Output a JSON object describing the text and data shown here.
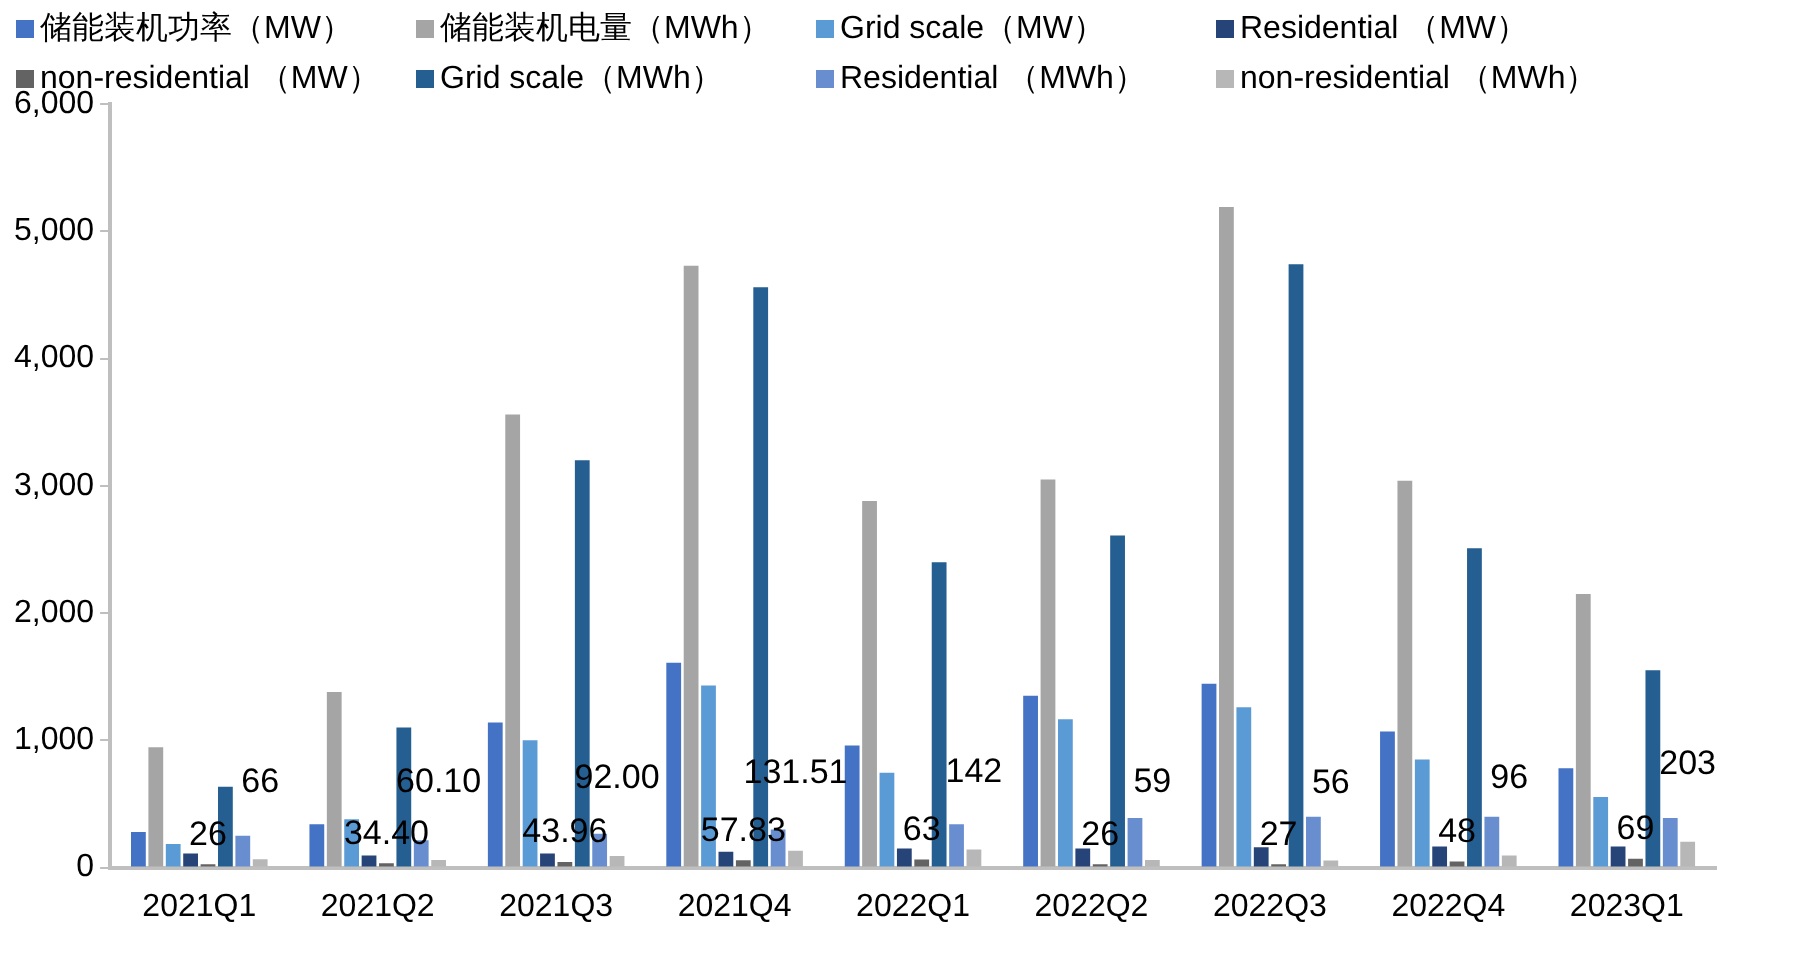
{
  "chart_data": {
    "type": "bar",
    "categories": [
      "2021Q1",
      "2021Q2",
      "2021Q3",
      "2021Q4",
      "2022Q1",
      "2022Q2",
      "2022Q3",
      "2022Q4",
      "2023Q1"
    ],
    "series": [
      {
        "name": "储能装机功率（MW）",
        "color": "#4472c4",
        "values": [
          280,
          340,
          1140,
          1610,
          960,
          1350,
          1445,
          1070,
          780
        ]
      },
      {
        "name": "储能装机电量（MWh）",
        "color": "#a5a5a5",
        "values": [
          945,
          1380,
          3560,
          4730,
          2880,
          3050,
          5190,
          3040,
          2150
        ]
      },
      {
        "name": "Grid scale（MW）",
        "color": "#5b9bd5",
        "values": [
          185,
          380,
          1000,
          1430,
          745,
          1165,
          1260,
          850,
          555
        ]
      },
      {
        "name": "Residential （MW）",
        "color": "#264478",
        "values": [
          110,
          95,
          110,
          125,
          150,
          150,
          160,
          165,
          165
        ]
      },
      {
        "name": "non-residential （MW）",
        "color": "#636363",
        "values": [
          26,
          34.4,
          43.96,
          57.83,
          63,
          26,
          27,
          48,
          69
        ],
        "value_labels": [
          "26",
          "34.40",
          "43.96",
          "57.83",
          "63",
          "26",
          "27",
          "48",
          "69"
        ]
      },
      {
        "name": "Grid scale（MWh）",
        "color": "#255e91",
        "values": [
          635,
          1100,
          3200,
          4560,
          2400,
          2610,
          4740,
          2510,
          1550
        ]
      },
      {
        "name": "Residential （MWh）",
        "color": "#698ed0",
        "values": [
          250,
          215,
          265,
          300,
          340,
          390,
          400,
          400,
          390
        ]
      },
      {
        "name": "non-residential （MWh）",
        "color": "#b7b7b7",
        "values": [
          66,
          60.1,
          92,
          131.51,
          142,
          59,
          56,
          96,
          203
        ],
        "value_labels": [
          "66",
          "60.10",
          "92.00",
          "131.51",
          "142",
          "59",
          "56",
          "96",
          "203"
        ]
      }
    ],
    "ylim": [
      0,
      6000
    ],
    "yticks": [
      0,
      {
        "value": 1000,
        "label": "1,000"
      },
      {
        "value": 2000,
        "label": "2,000"
      },
      {
        "value": 3000,
        "label": "3,000"
      },
      {
        "value": 4000,
        "label": "4,000"
      },
      {
        "value": 5000,
        "label": "5,000"
      },
      {
        "value": 6000,
        "label": "6,000"
      }
    ],
    "grid": false,
    "legend": "top"
  }
}
